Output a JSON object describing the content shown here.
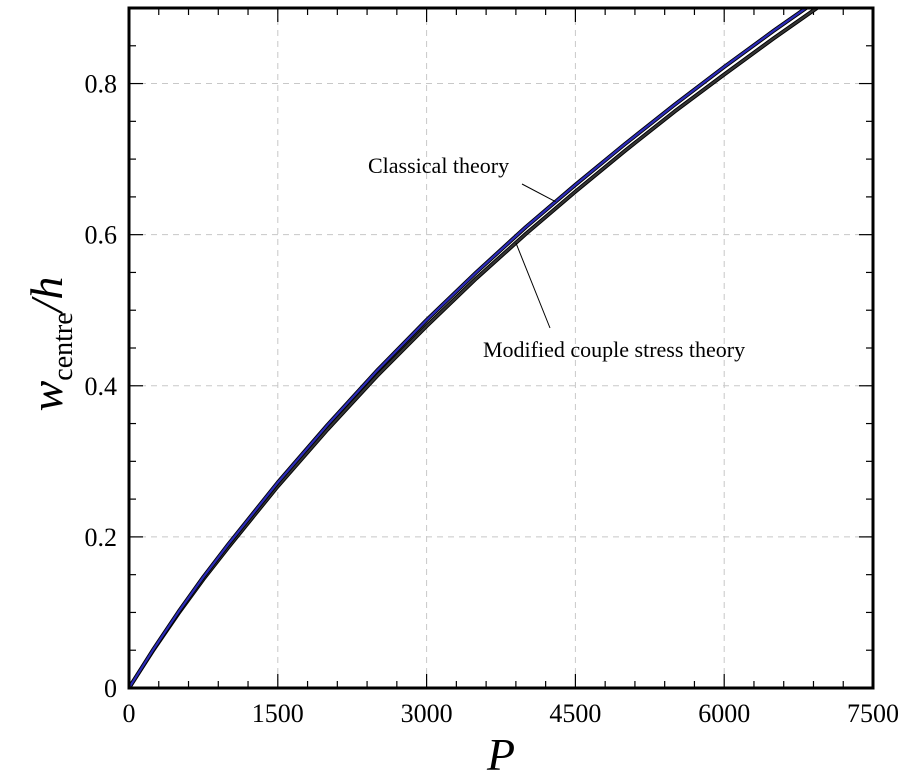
{
  "chart_data": {
    "type": "line",
    "xlabel": "P",
    "ylabel": {
      "main": "w",
      "subscript": "centre",
      "suffix": "/h"
    },
    "xlim": [
      0,
      7500
    ],
    "ylim": [
      0,
      0.9
    ],
    "x_ticks": [
      0,
      1500,
      3000,
      4500,
      6000,
      7500
    ],
    "y_ticks": [
      0,
      0.2,
      0.4,
      0.6,
      0.8
    ],
    "x_tick_labels": [
      "0",
      "1500",
      "3000",
      "4500",
      "6000",
      "7500"
    ],
    "y_tick_labels": [
      "0",
      "0.2",
      "0.4",
      "0.6",
      "0.8"
    ],
    "grid": true,
    "series": [
      {
        "name": "Classical theory",
        "color": "#2b2bb8",
        "x": [
          0,
          250,
          500,
          750,
          1000,
          1500,
          2000,
          2500,
          3000,
          3500,
          4000,
          4500,
          5000,
          5500,
          6000,
          6500,
          7000,
          7500
        ],
        "y": [
          0,
          0.052,
          0.101,
          0.147,
          0.19,
          0.272,
          0.348,
          0.42,
          0.487,
          0.55,
          0.61,
          0.666,
          0.72,
          0.772,
          0.822,
          0.87,
          0.916,
          0.96
        ]
      },
      {
        "name": "Modified couple stress theory",
        "color": "#333333",
        "x": [
          0,
          250,
          500,
          750,
          1000,
          1500,
          2000,
          2500,
          3000,
          3500,
          4000,
          4500,
          5000,
          5500,
          6000,
          6500,
          7000,
          7500
        ],
        "y": [
          0,
          0.051,
          0.099,
          0.144,
          0.186,
          0.267,
          0.342,
          0.413,
          0.479,
          0.542,
          0.601,
          0.657,
          0.711,
          0.763,
          0.812,
          0.86,
          0.906,
          0.95
        ]
      }
    ],
    "annotations": [
      {
        "text": "Classical theory",
        "series": 0,
        "x": 4300
      },
      {
        "text": "Modified couple stress theory",
        "series": 1,
        "x": 3900
      }
    ]
  }
}
